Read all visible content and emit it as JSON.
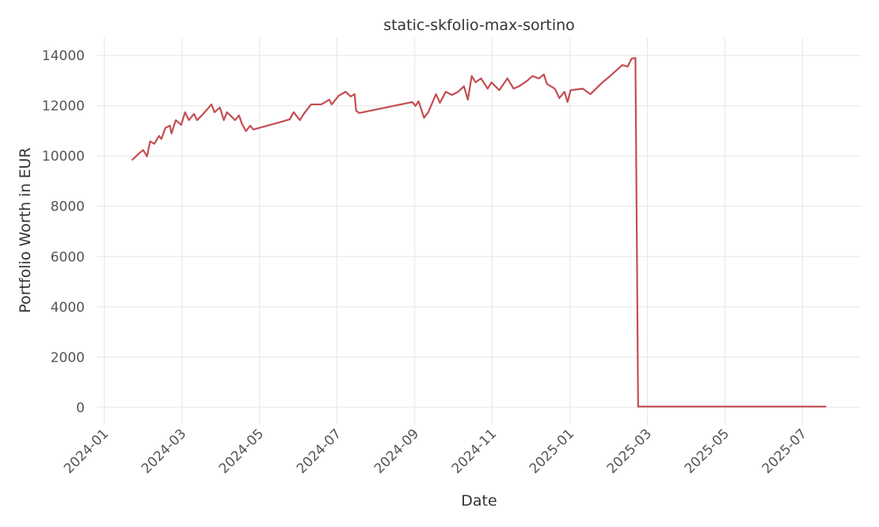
{
  "chart_data": {
    "type": "line",
    "title": "static-skfolio-max-sortino",
    "xlabel": "Date",
    "ylabel": "Portfolio Worth in EUR",
    "x": [
      0.71,
      0.9,
      1.0,
      1.1,
      1.18,
      1.29,
      1.41,
      1.47,
      1.57,
      1.69,
      1.73,
      1.84,
      1.98,
      2.08,
      2.18,
      2.31,
      2.39,
      2.55,
      2.76,
      2.84,
      2.98,
      3.08,
      3.16,
      3.37,
      3.47,
      3.55,
      3.65,
      3.76,
      3.84,
      4.57,
      4.78,
      4.88,
      5.04,
      5.14,
      5.33,
      5.59,
      5.8,
      5.86,
      6.04,
      6.22,
      6.35,
      6.45,
      6.49,
      6.57,
      7.94,
      8.02,
      8.1,
      8.24,
      8.35,
      8.55,
      8.65,
      8.8,
      8.96,
      9.12,
      9.27,
      9.37,
      9.47,
      9.57,
      9.71,
      9.88,
      9.98,
      10.18,
      10.39,
      10.55,
      10.69,
      10.9,
      11.04,
      11.2,
      11.33,
      11.41,
      11.61,
      11.73,
      11.86,
      11.94,
      12.02,
      12.33,
      12.53,
      12.84,
      13.04,
      13.35,
      13.49,
      13.59,
      13.69,
      13.76,
      18.61
    ],
    "series": [
      {
        "name": "static-skfolio-max-sortino",
        "color": "#c44e52",
        "values": [
          9834,
          10116,
          10241,
          9990,
          10585,
          10490,
          10805,
          10680,
          11118,
          11212,
          10900,
          11430,
          11243,
          11745,
          11430,
          11680,
          11430,
          11680,
          12057,
          11745,
          11932,
          11430,
          11745,
          11430,
          11620,
          11275,
          10993,
          11212,
          11055,
          11368,
          11462,
          11745,
          11430,
          11680,
          12057,
          12057,
          12245,
          12057,
          12402,
          12559,
          12371,
          12465,
          11807,
          11713,
          12151,
          11995,
          12183,
          11525,
          11745,
          12465,
          12120,
          12559,
          12433,
          12559,
          12778,
          12245,
          13185,
          12935,
          13091,
          12684,
          12935,
          12621,
          13091,
          12684,
          12778,
          12997,
          13185,
          13091,
          13248,
          12872,
          12684,
          12308,
          12559,
          12151,
          12621,
          12684,
          12465,
          12935,
          13185,
          13623,
          13561,
          13874,
          13905,
          30,
          30
        ]
      }
    ],
    "xlim": [
      -0.2,
      19.5
    ],
    "ylim": [
      -700,
      14700
    ],
    "xticks": [
      {
        "value": 0,
        "label": "2024-01"
      },
      {
        "value": 2,
        "label": "2024-03"
      },
      {
        "value": 4,
        "label": "2024-05"
      },
      {
        "value": 6,
        "label": "2024-07"
      },
      {
        "value": 8,
        "label": "2024-09"
      },
      {
        "value": 10,
        "label": "2024-11"
      },
      {
        "value": 12,
        "label": "2025-01"
      },
      {
        "value": 14,
        "label": "2025-03"
      },
      {
        "value": 16,
        "label": "2025-05"
      },
      {
        "value": 18,
        "label": "2025-07"
      }
    ],
    "yticks": [
      0,
      2000,
      4000,
      6000,
      8000,
      10000,
      12000,
      14000
    ],
    "grid": true
  }
}
